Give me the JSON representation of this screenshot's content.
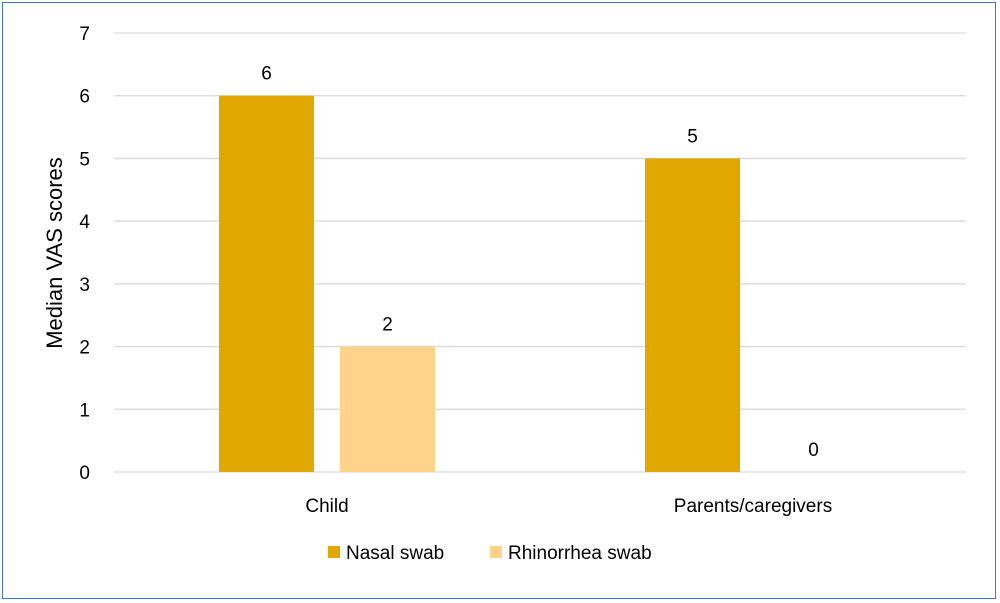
{
  "chart_data": {
    "type": "bar",
    "categories": [
      "Child",
      "Parents/caregivers"
    ],
    "series": [
      {
        "name": "Nasal swab",
        "values": [
          6,
          5
        ],
        "color": "#E0A800"
      },
      {
        "name": "Rhinorrhea swab",
        "values": [
          2,
          0
        ],
        "color": "#FFD28A"
      }
    ],
    "ylabel": "Median VAS scores",
    "ylim": [
      0,
      7
    ],
    "yticks": [
      0,
      1,
      2,
      3,
      4,
      5,
      6,
      7
    ],
    "grid": true,
    "legend_position": "bottom",
    "gridline_color": "#D9D9D9",
    "frame_color": "#4472C4"
  }
}
